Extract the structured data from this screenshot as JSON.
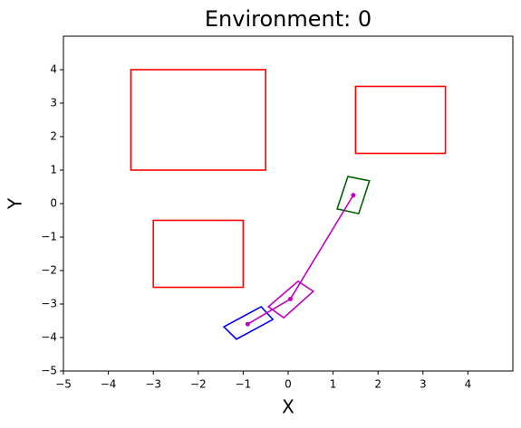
{
  "chart_data": {
    "type": "shapes",
    "title": "Environment: 0",
    "x_label": "X",
    "y_label": "Y",
    "xlim": [
      -5,
      5
    ],
    "ylim": [
      -5,
      5
    ],
    "xticks": [
      {
        "value": -5,
        "label": "−5"
      },
      {
        "value": -4,
        "label": "−4"
      },
      {
        "value": -3,
        "label": "−3"
      },
      {
        "value": -2,
        "label": "−2"
      },
      {
        "value": -1,
        "label": "−1"
      },
      0,
      1,
      2,
      3,
      4
    ],
    "yticks": [
      {
        "value": -5,
        "label": "−5"
      },
      {
        "value": -4,
        "label": "−4"
      },
      {
        "value": -3,
        "label": "−3"
      },
      {
        "value": -2,
        "label": "−2"
      },
      {
        "value": -1,
        "label": "−1"
      },
      0,
      1,
      2,
      3,
      4
    ],
    "obstacles": {
      "color": "#ff0000",
      "rects": [
        {
          "x": [
            -3.5,
            -0.5
          ],
          "y": [
            1,
            4
          ]
        },
        {
          "x": [
            1.5,
            3.5
          ],
          "y": [
            1.5,
            3.5
          ]
        },
        {
          "x": [
            -3,
            -1
          ],
          "y": [
            -2.5,
            -0.5
          ]
        }
      ]
    },
    "path": {
      "color": "#bf00bf",
      "x": [
        -0.9,
        0.05,
        1.45
      ],
      "y": [
        -3.6,
        -2.85,
        0.25
      ]
    },
    "boxes": [
      {
        "color": "#0000ff",
        "x": [
          -1.43,
          -0.6,
          -0.34,
          -1.15
        ],
        "y": [
          -3.68,
          -3.08,
          -3.46,
          -4.05
        ]
      },
      {
        "color": "#bf00bf",
        "x": [
          -0.44,
          0.22,
          0.56,
          -0.1
        ],
        "y": [
          -3.08,
          -2.32,
          -2.62,
          -3.41
        ]
      },
      {
        "color": "#006400",
        "x": [
          1.33,
          1.81,
          1.57,
          1.09
        ],
        "y": [
          0.81,
          0.68,
          -0.3,
          -0.16
        ]
      }
    ]
  }
}
